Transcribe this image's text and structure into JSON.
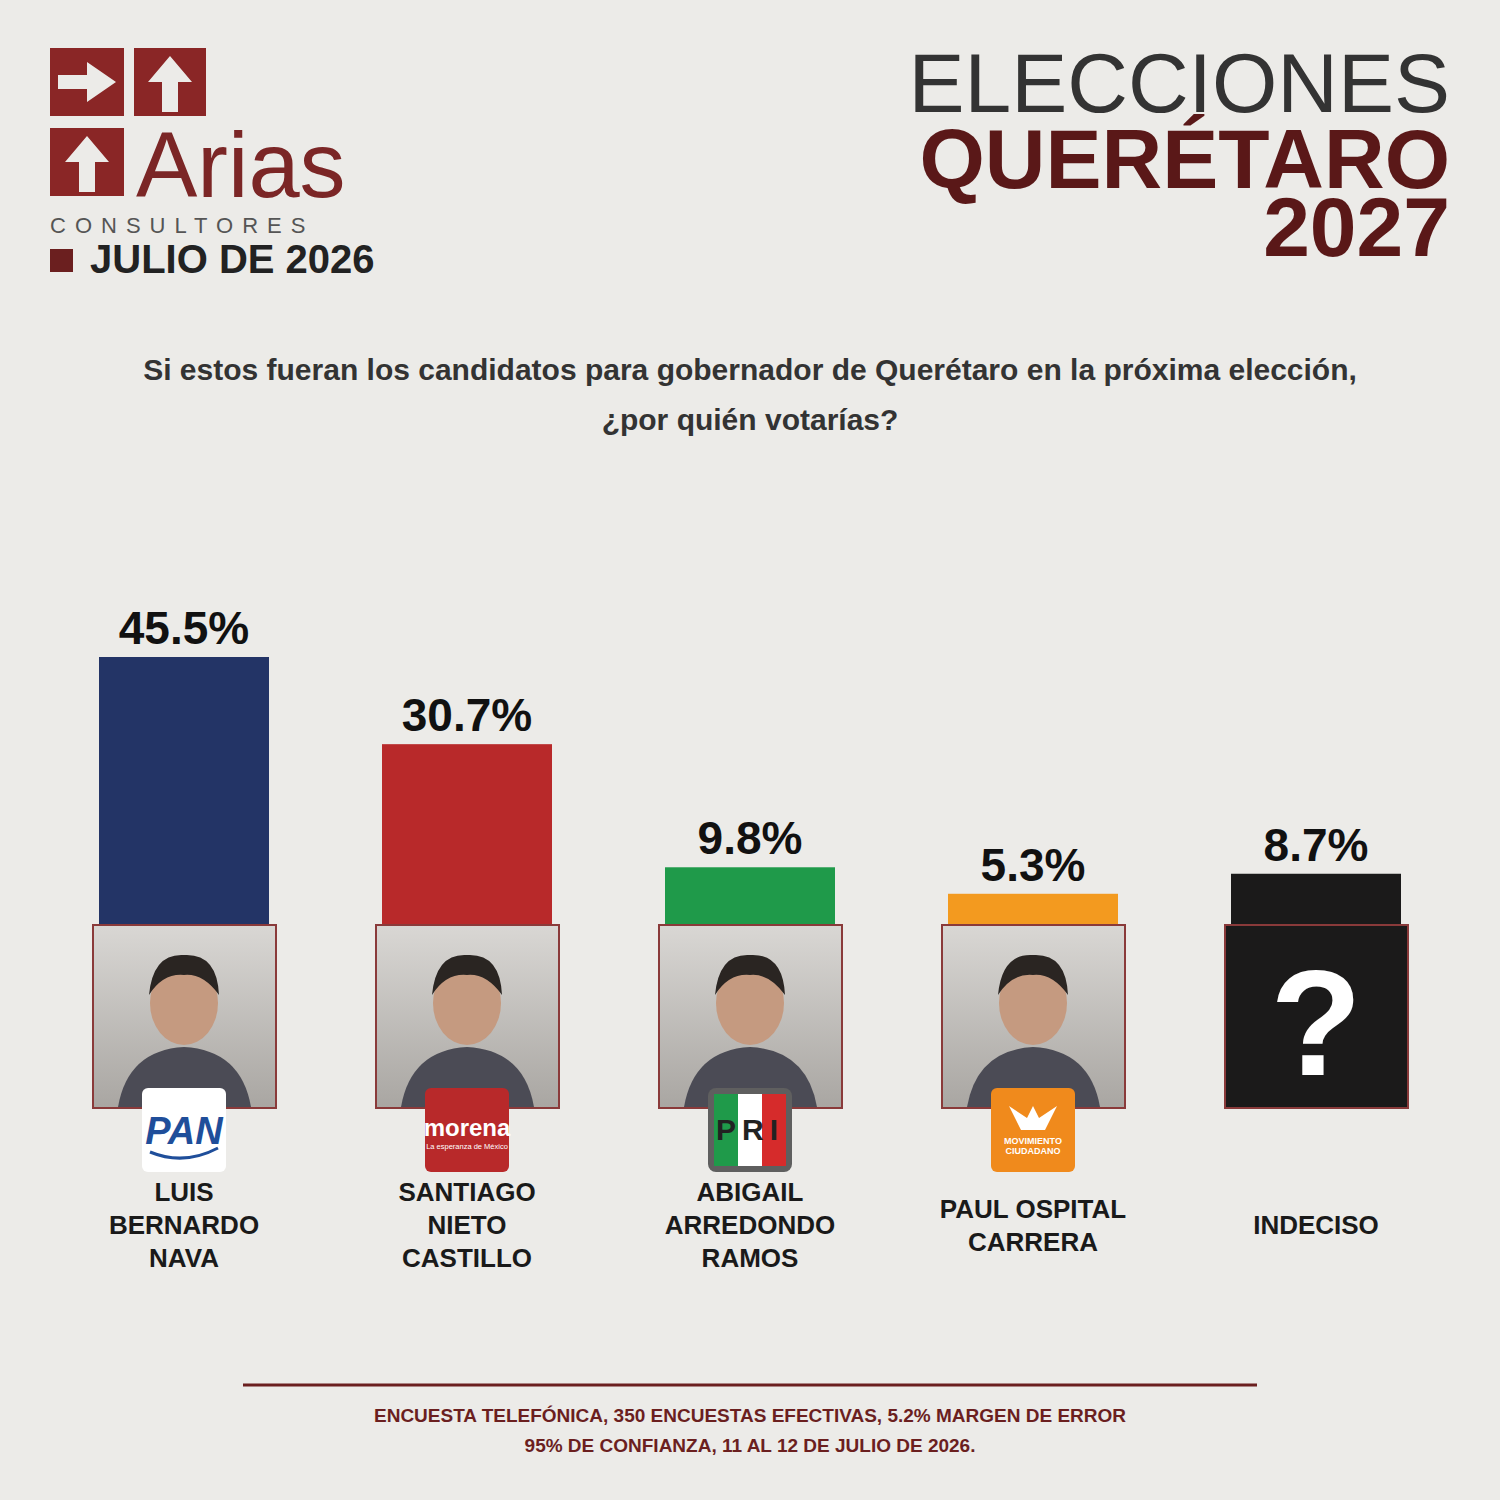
{
  "header": {
    "brand": "Arias",
    "brand_sub": "CONSULTORES",
    "date": "JULIO DE 2026",
    "title_line1": "ELECCIONES",
    "title_line2": "QUERÉTARO",
    "title_line3": "2027"
  },
  "chart_data": {
    "type": "bar",
    "title": "Si estos fueran los candidatos para gobernador de Querétaro en la próxima elección, ¿por quién votarías?",
    "categories": [
      "LUIS BERNARDO NAVA",
      "SANTIAGO NIETO CASTILLO",
      "ABIGAIL ARREDONDO RAMOS",
      "PAUL OSPITAL CARRERA",
      "INDECISO"
    ],
    "values": [
      45.5,
      30.7,
      9.8,
      5.3,
      8.7
    ],
    "value_labels": [
      "45.5%",
      "30.7%",
      "9.8%",
      "5.3%",
      "8.7%"
    ],
    "colors": [
      "#233466",
      "#b8292a",
      "#1f9a4a",
      "#f39a1f",
      "#1b1a1a"
    ],
    "ylim": [
      0,
      50
    ],
    "data_labels": true,
    "tick_labels": false
  },
  "logos": [
    {
      "text": "PAN"
    },
    {
      "text": "morena",
      "tagline": "La esperanza de México"
    },
    {
      "text": "PRI"
    },
    {
      "text": "MOVIMIENTO CIUDADANO"
    }
  ],
  "undecided_icon": "?",
  "footer": [
    "ENCUESTA TELEFÓNICA, 350 ENCUESTAS EFECTIVAS, 5.2%  MARGEN DE ERROR",
    "95% DE CONFIANZA, 11 AL 12 DE JULIO DE 2026."
  ]
}
